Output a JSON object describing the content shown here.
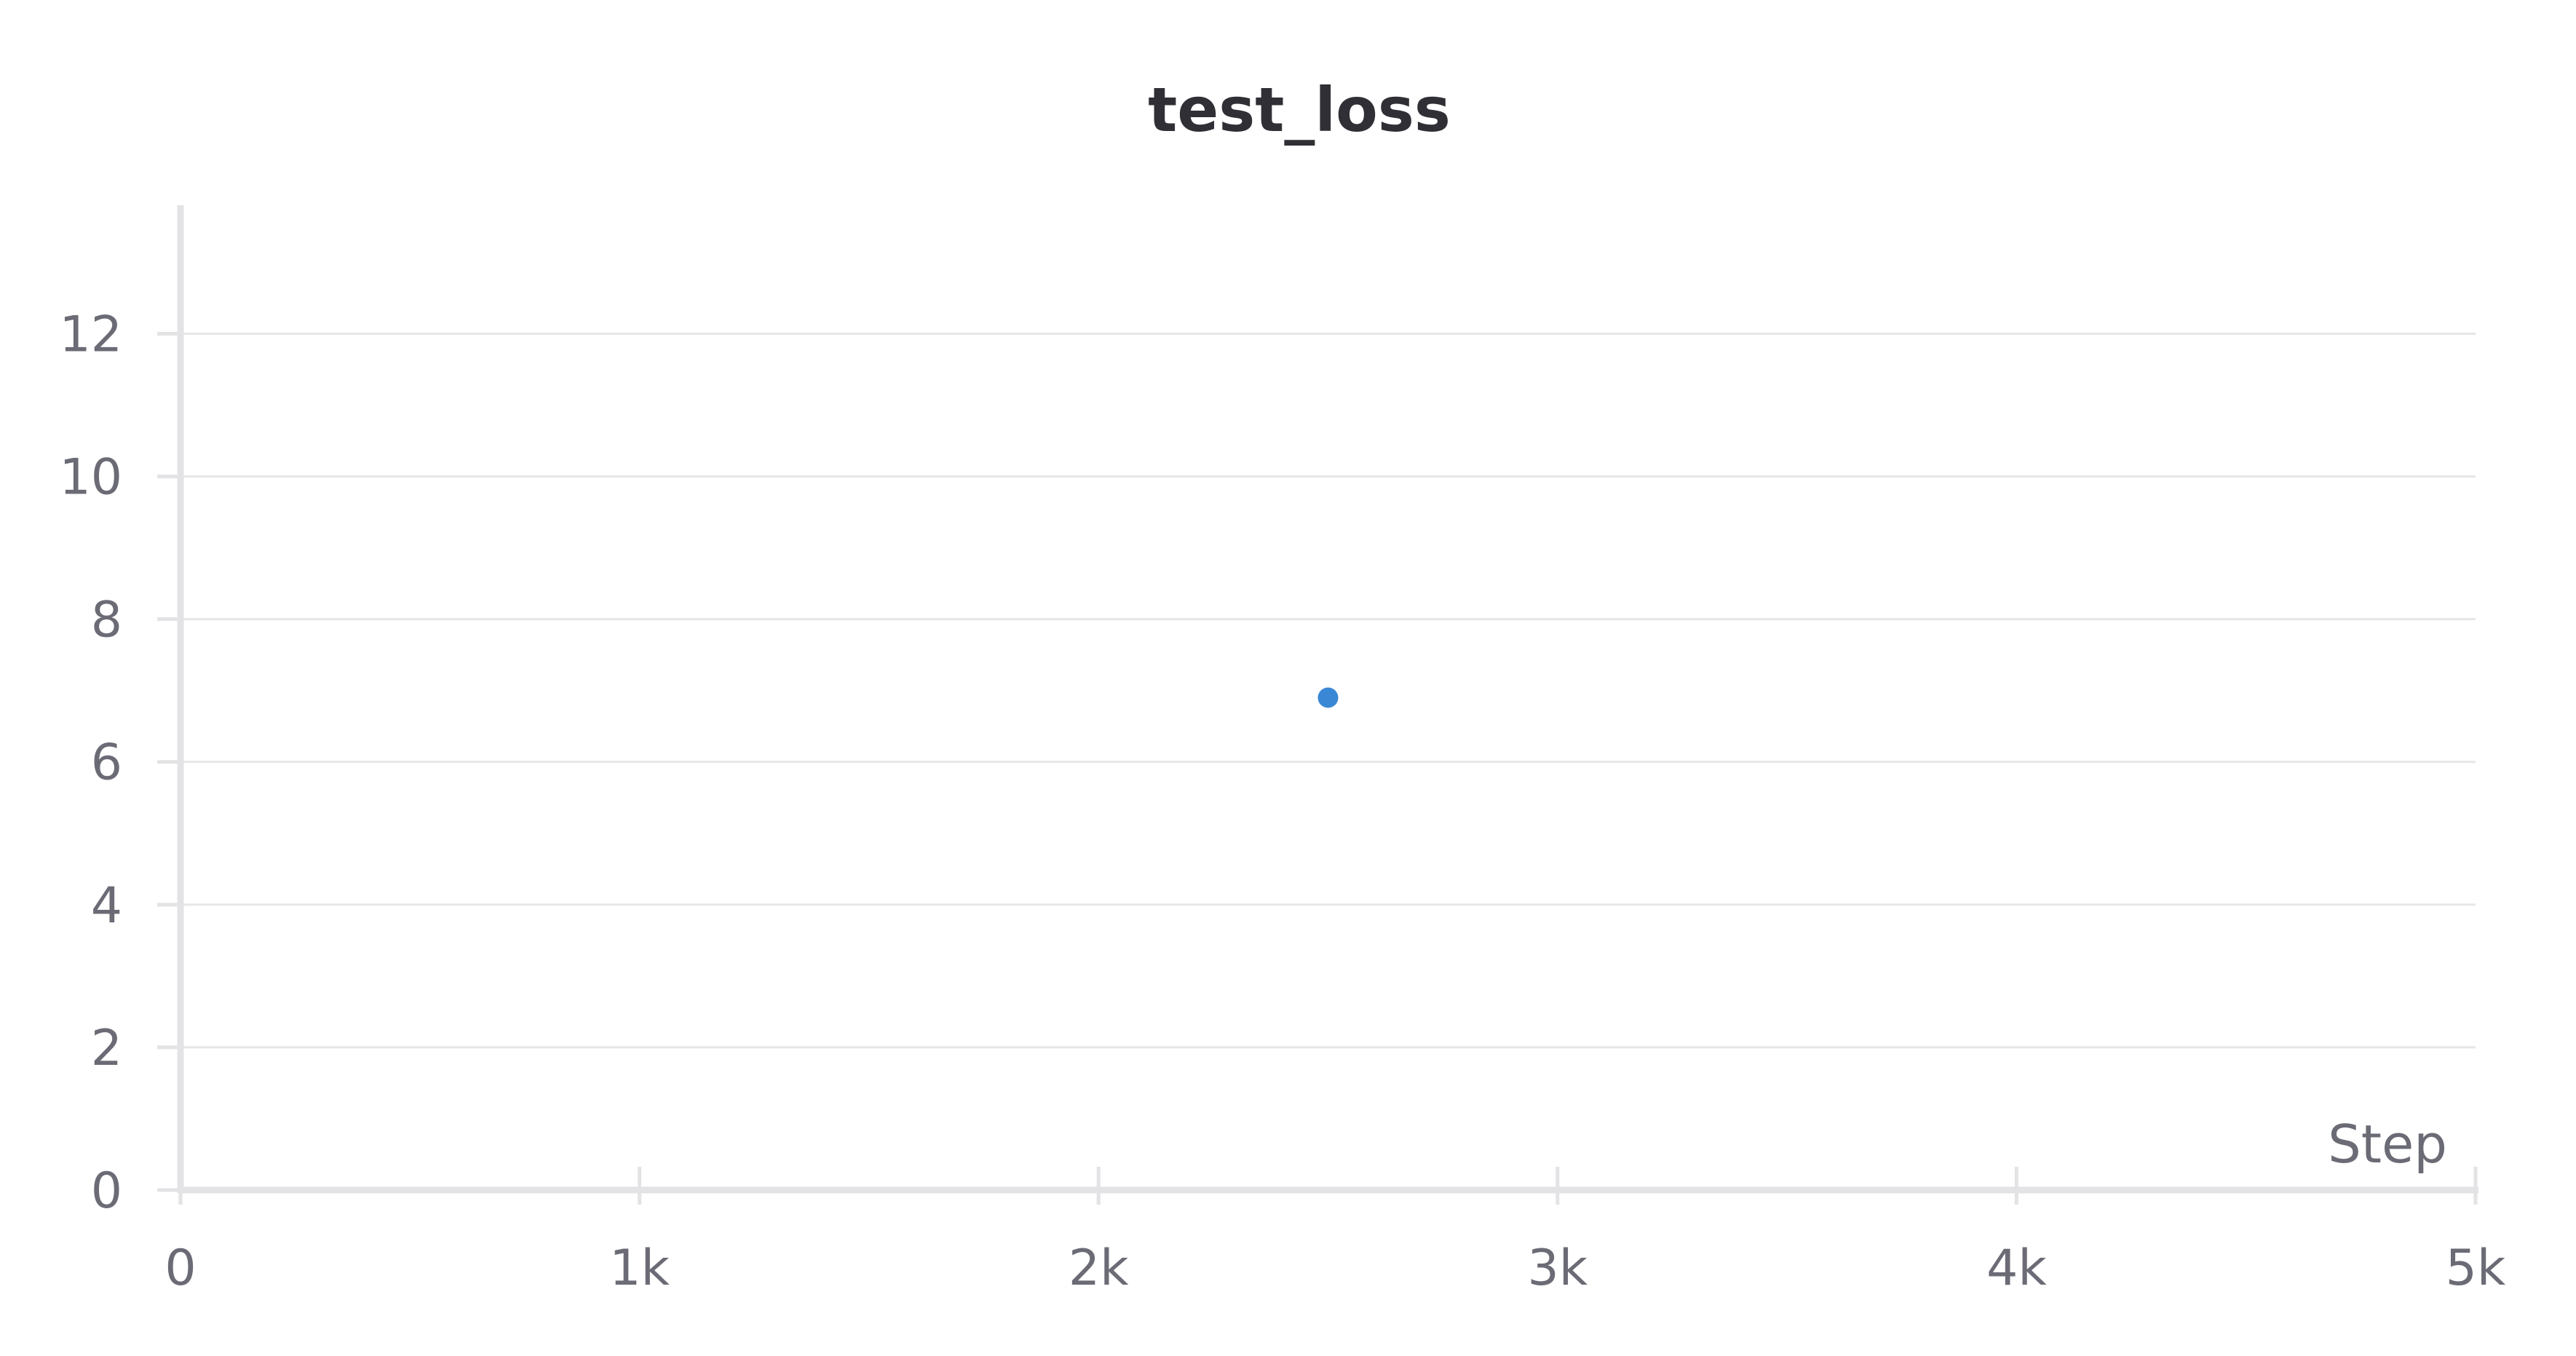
{
  "chart_data": {
    "type": "scatter",
    "title": "test_loss",
    "xlabel": "Step",
    "ylabel": "",
    "xlim": [
      0,
      5000
    ],
    "ylim": [
      0,
      13.8
    ],
    "x_ticks": [
      0,
      1000,
      2000,
      3000,
      4000,
      5000
    ],
    "x_tick_labels": [
      "0",
      "1k",
      "2k",
      "3k",
      "4k",
      "5k"
    ],
    "y_ticks": [
      0,
      2,
      4,
      6,
      8,
      10,
      12
    ],
    "y_tick_labels": [
      "0",
      "2",
      "4",
      "6",
      "8",
      "10",
      "12"
    ],
    "grid": true,
    "series": [
      {
        "color": "#3a87d6",
        "points": [
          {
            "x": 2500,
            "y": 6.9
          }
        ]
      }
    ]
  }
}
